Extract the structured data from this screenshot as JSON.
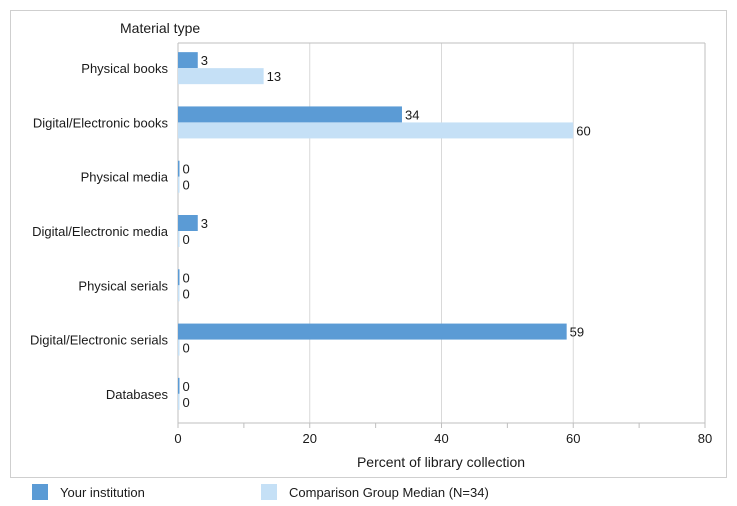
{
  "chart_data": {
    "type": "bar",
    "orientation": "horizontal",
    "title": "Material type",
    "categories": [
      "Physical books",
      "Digital/Electronic books",
      "Physical media",
      "Digital/Electronic media",
      "Physical serials",
      "Digital/Electronic serials",
      "Databases"
    ],
    "series": [
      {
        "name": "Your institution",
        "color": "#5b9bd5",
        "values": [
          3,
          34,
          0,
          3,
          0,
          59,
          0
        ]
      },
      {
        "name": "Comparison Group Median (N=34)",
        "color": "#c5e0f6",
        "values": [
          13,
          60,
          0,
          0,
          0,
          0,
          0
        ]
      }
    ],
    "xlabel": "Percent of library collection",
    "xlim": [
      0,
      80
    ],
    "xticks": [
      0,
      20,
      40,
      60,
      80
    ],
    "grid": true,
    "legend": "bottom"
  }
}
